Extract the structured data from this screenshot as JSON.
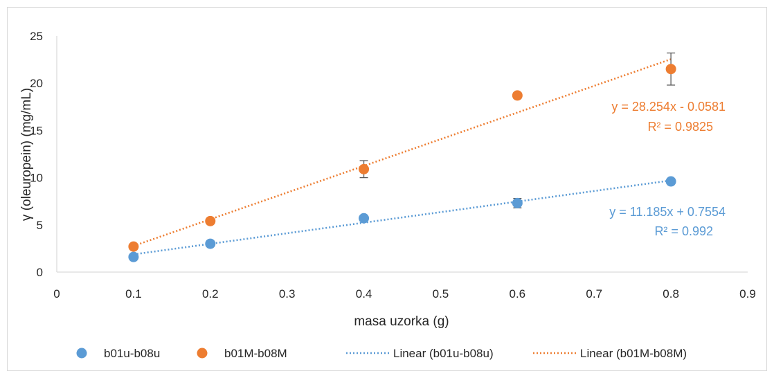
{
  "chart_data": {
    "type": "scatter",
    "xlabel": "masa uzorka (g)",
    "ylabel": "γ (oleuropein) (mg/mL)",
    "xlim": [
      0,
      0.9
    ],
    "ylim": [
      0,
      25
    ],
    "xticks": [
      "0",
      "0.1",
      "0.2",
      "0.3",
      "0.4",
      "0.5",
      "0.6",
      "0.7",
      "0.8",
      "0.9"
    ],
    "yticks": [
      "0",
      "5",
      "10",
      "15",
      "20",
      "25"
    ],
    "grid": false,
    "legend_position": "bottom",
    "series": [
      {
        "name": "b01u-b08u",
        "color": "#5b9bd5",
        "x": [
          0.1,
          0.2,
          0.4,
          0.6,
          0.8
        ],
        "y": [
          1.6,
          3.0,
          5.7,
          7.3,
          9.6
        ],
        "error": [
          0.25,
          0.2,
          0.3,
          0.5,
          0.2
        ]
      },
      {
        "name": "b01M-b08M",
        "color": "#ed7d31",
        "x": [
          0.1,
          0.2,
          0.4,
          0.6,
          0.8
        ],
        "y": [
          2.7,
          5.4,
          10.9,
          18.7,
          21.5
        ],
        "error": [
          0.25,
          0.2,
          0.9,
          0.3,
          1.7
        ]
      }
    ],
    "trendlines": [
      {
        "name": "Linear (b01u-b08u)",
        "color": "#5b9bd5",
        "slope": 11.185,
        "intercept": 0.7554,
        "x_range": [
          0.1,
          0.8
        ],
        "equation": "y = 11.185x + 0.7554",
        "r2": "R² = 0.992"
      },
      {
        "name": "Linear (b01M-b08M)",
        "color": "#ed7d31",
        "slope": 28.254,
        "intercept": -0.0581,
        "x_range": [
          0.1,
          0.8
        ],
        "equation": "y = 28.254x - 0.0581",
        "r2": "R² = 0.9825"
      }
    ]
  }
}
